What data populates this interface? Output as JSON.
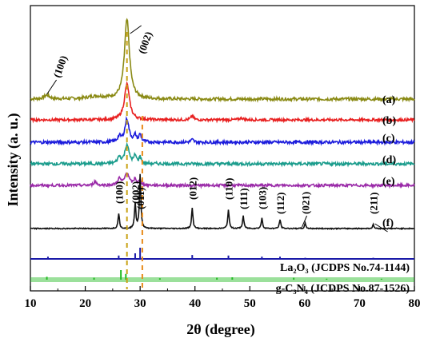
{
  "chart_data": {
    "type": "line",
    "xlabel": "2θ (degree)",
    "ylabel": "Intensity (a. u.)",
    "xlim": [
      10,
      80
    ],
    "x_ticks": [
      "10",
      "20",
      "30",
      "40",
      "50",
      "60",
      "70",
      "80"
    ],
    "series": [
      {
        "name": "(a)",
        "color": "#8a8a14",
        "baseline": 0.0,
        "noise": 0.012,
        "peaks": [
          [
            13.0,
            0.03,
            0.6
          ],
          [
            27.6,
            0.62,
            0.55
          ],
          [
            22.0,
            0.02,
            2.0
          ]
        ]
      },
      {
        "name": "(b)",
        "color": "#e82020",
        "baseline": 0.0,
        "noise": 0.01,
        "peaks": [
          [
            27.6,
            0.28,
            0.55
          ],
          [
            39.5,
            0.03,
            0.3
          ],
          [
            48.5,
            0.015,
            0.4
          ]
        ]
      },
      {
        "name": "(c)",
        "color": "#1c1cdc",
        "baseline": 0.0,
        "noise": 0.012,
        "peaks": [
          [
            26.2,
            0.04,
            0.35
          ],
          [
            27.6,
            0.18,
            0.45
          ],
          [
            29.1,
            0.05,
            0.25
          ],
          [
            30.0,
            0.06,
            0.25
          ],
          [
            39.5,
            0.02,
            0.3
          ]
        ]
      },
      {
        "name": "(d)",
        "color": "#1a9c8c",
        "baseline": 0.0,
        "noise": 0.012,
        "peaks": [
          [
            26.2,
            0.05,
            0.35
          ],
          [
            27.6,
            0.15,
            0.45
          ],
          [
            29.1,
            0.06,
            0.25
          ],
          [
            30.0,
            0.05,
            0.25
          ]
        ]
      },
      {
        "name": "(e)",
        "color": "#9a2aa8",
        "baseline": 0.0,
        "noise": 0.01,
        "peaks": [
          [
            21.8,
            0.03,
            0.3
          ],
          [
            26.2,
            0.05,
            0.35
          ],
          [
            27.6,
            0.1,
            0.45
          ],
          [
            29.1,
            0.05,
            0.25
          ],
          [
            30.0,
            0.04,
            0.25
          ]
        ]
      },
      {
        "name": "(f)",
        "color": "#111111",
        "baseline": 0.0,
        "noise": 0.004,
        "peaks": [
          [
            26.1,
            0.12,
            0.15
          ],
          [
            29.1,
            0.2,
            0.15
          ],
          [
            30.0,
            0.42,
            0.15
          ],
          [
            39.5,
            0.16,
            0.15
          ],
          [
            46.1,
            0.15,
            0.15
          ],
          [
            48.8,
            0.1,
            0.15
          ],
          [
            52.2,
            0.08,
            0.15
          ],
          [
            55.5,
            0.07,
            0.15
          ],
          [
            60.1,
            0.04,
            0.15
          ],
          [
            72.5,
            0.03,
            0.15
          ]
        ]
      }
    ],
    "reference_patterns": [
      {
        "name": "La₂O₃ (JCDPS No.74-1144)",
        "color": "#1a1aa8",
        "lines": [
          [
            13.2,
            0.2
          ],
          [
            26.1,
            0.3
          ],
          [
            29.1,
            0.5
          ],
          [
            30.0,
            1.0
          ],
          [
            39.5,
            0.35
          ],
          [
            46.1,
            0.3
          ],
          [
            52.2,
            0.2
          ],
          [
            55.5,
            0.2
          ],
          [
            60.1,
            0.1
          ],
          [
            72.5,
            0.1
          ]
        ]
      },
      {
        "name": "g-C₃N₄ (JCDPS No.87-1526)",
        "color": "#22bb22",
        "lines": [
          [
            13.0,
            0.3
          ],
          [
            21.6,
            0.2
          ],
          [
            26.5,
            1.0
          ],
          [
            27.4,
            0.6
          ],
          [
            33.6,
            0.15
          ],
          [
            44.0,
            0.2
          ],
          [
            46.8,
            0.25
          ],
          [
            58.0,
            0.2
          ],
          [
            64.0,
            0.1
          ],
          [
            74.0,
            0.1
          ]
        ]
      }
    ],
    "peak_labels": [
      {
        "text": "(100)",
        "x": 13.0,
        "series": "(a)"
      },
      {
        "text": "(002)",
        "x": 27.6,
        "series": "(a)"
      },
      {
        "text": "(100)",
        "x": 26.1,
        "series": "(f)"
      },
      {
        "text": "(002)",
        "x": 29.1,
        "series": "(f)"
      },
      {
        "text": "(011)",
        "x": 30.0,
        "series": "(f)"
      },
      {
        "text": "(012)",
        "x": 39.5,
        "series": "(f)"
      },
      {
        "text": "(110)",
        "x": 46.1,
        "series": "(f)"
      },
      {
        "text": "(111)",
        "x": 48.8,
        "series": "(f)"
      },
      {
        "text": "(103)",
        "x": 52.2,
        "series": "(f)"
      },
      {
        "text": "(112)",
        "x": 55.5,
        "series": "(f)"
      },
      {
        "text": "(021)",
        "x": 60.1,
        "series": "(f)"
      },
      {
        "text": "(211)",
        "x": 72.5,
        "series": "(f)"
      }
    ],
    "dashed_markers": [
      {
        "x": 27.6,
        "color": "#c8a214"
      },
      {
        "x": 30.4,
        "color": "#e88a18"
      }
    ],
    "grid": false,
    "legend": "none"
  }
}
